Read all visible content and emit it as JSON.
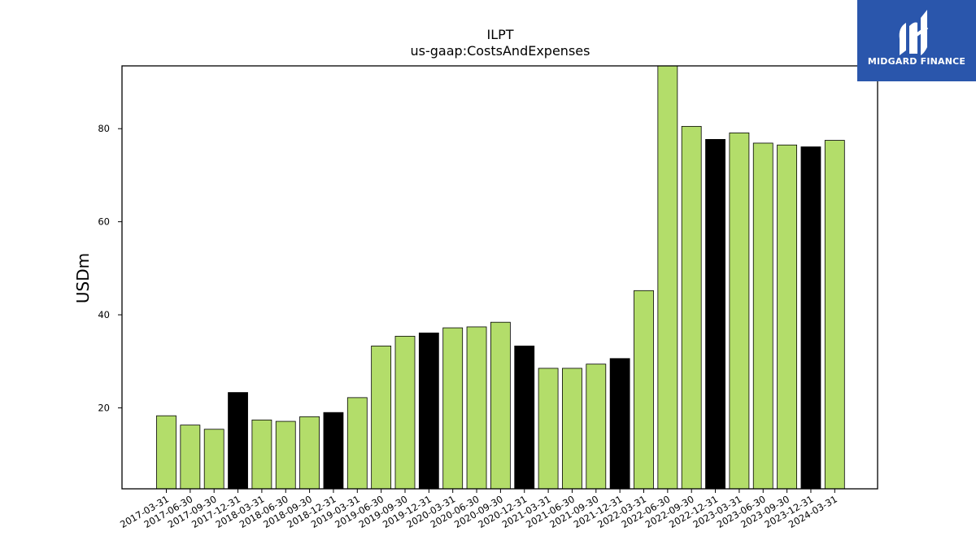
{
  "chart_data": {
    "type": "bar",
    "title": "ILPT",
    "subtitle": "us-gaap:CostsAndExpenses",
    "xlabel": "",
    "ylabel": "USDm",
    "ylim": [
      2.6,
      93.5
    ],
    "yticks": [
      20,
      40,
      60,
      80
    ],
    "grid": false,
    "categories": [
      "2017-03-31",
      "2017-06-30",
      "2017-09-30",
      "2017-12-31",
      "2018-03-31",
      "2018-06-30",
      "2018-09-30",
      "2018-12-31",
      "2019-03-31",
      "2019-06-30",
      "2019-09-30",
      "2019-12-31",
      "2020-03-31",
      "2020-06-30",
      "2020-09-30",
      "2020-12-31",
      "2021-03-31",
      "2021-06-30",
      "2021-09-30",
      "2021-12-31",
      "2022-03-31",
      "2022-06-30",
      "2022-09-30",
      "2022-12-31",
      "2023-03-31",
      "2023-06-30",
      "2023-09-30",
      "2023-12-31",
      "2024-03-31"
    ],
    "values": [
      18.3,
      16.3,
      15.4,
      23.3,
      17.4,
      17.1,
      18.1,
      19.0,
      22.2,
      33.3,
      35.4,
      36.1,
      37.2,
      37.4,
      38.4,
      33.3,
      28.5,
      28.5,
      29.4,
      30.6,
      45.2,
      95.0,
      80.5,
      77.7,
      79.1,
      76.9,
      76.5,
      76.1,
      77.5
    ],
    "bar_colors": [
      "#b3dd6a",
      "#b3dd6a",
      "#b3dd6a",
      "#000000",
      "#b3dd6a",
      "#b3dd6a",
      "#b3dd6a",
      "#000000",
      "#b3dd6a",
      "#b3dd6a",
      "#b3dd6a",
      "#000000",
      "#b3dd6a",
      "#b3dd6a",
      "#b3dd6a",
      "#000000",
      "#b3dd6a",
      "#b3dd6a",
      "#b3dd6a",
      "#000000",
      "#b3dd6a",
      "#b3dd6a",
      "#b3dd6a",
      "#000000",
      "#b3dd6a",
      "#b3dd6a",
      "#b3dd6a",
      "#000000",
      "#b3dd6a"
    ]
  },
  "logo": {
    "text": "MIDGARD FINANCE",
    "background": "#2a56ac"
  }
}
